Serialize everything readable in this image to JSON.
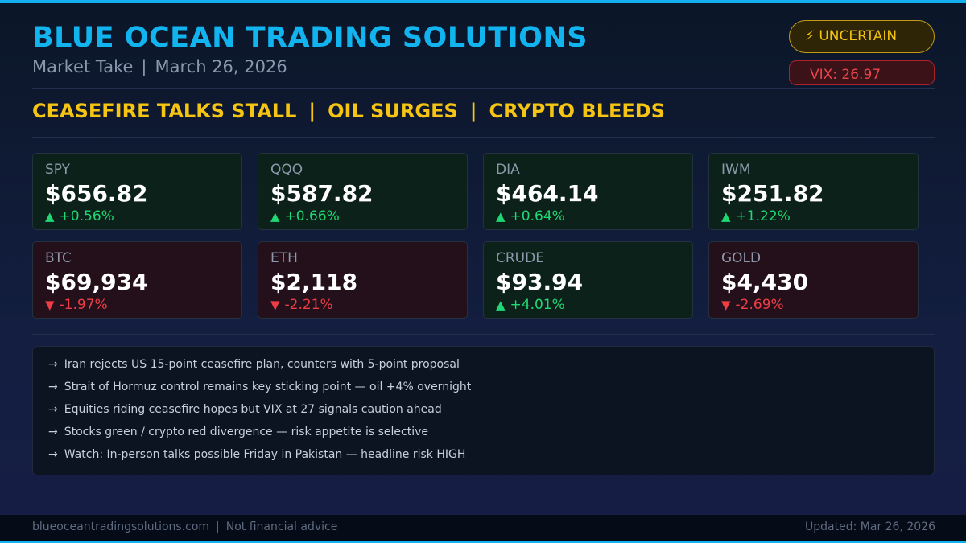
{
  "header": {
    "title": "BLUE OCEAN TRADING SOLUTIONS",
    "subtitle_left": "Market Take",
    "subtitle_separator": "|",
    "subtitle_date": "March 26, 2026"
  },
  "badges": {
    "uncertain_icon": "⚡",
    "uncertain_label": "UNCERTAIN",
    "vix_label": "VIX: 26.97"
  },
  "headline": {
    "parts": [
      "CEASEFIRE TALKS STALL",
      "OIL SURGES",
      "CRYPTO BLEEDS"
    ],
    "separator": "|"
  },
  "tickers": [
    {
      "symbol": "SPY",
      "price": "$656.82",
      "arrow": "▲",
      "change": "+0.56%",
      "direction": "up"
    },
    {
      "symbol": "QQQ",
      "price": "$587.82",
      "arrow": "▲",
      "change": "+0.66%",
      "direction": "up"
    },
    {
      "symbol": "DIA",
      "price": "$464.14",
      "arrow": "▲",
      "change": "+0.64%",
      "direction": "up"
    },
    {
      "symbol": "IWM",
      "price": "$251.82",
      "arrow": "▲",
      "change": "+1.22%",
      "direction": "up"
    },
    {
      "symbol": "BTC",
      "price": "$69,934",
      "arrow": "▼",
      "change": "-1.97%",
      "direction": "down"
    },
    {
      "symbol": "ETH",
      "price": "$2,118",
      "arrow": "▼",
      "change": "-2.21%",
      "direction": "down"
    },
    {
      "symbol": "CRUDE",
      "price": "$93.94",
      "arrow": "▲",
      "change": "+4.01%",
      "direction": "up"
    },
    {
      "symbol": "GOLD",
      "price": "$4,430",
      "arrow": "▼",
      "change": "-2.69%",
      "direction": "down"
    }
  ],
  "notes": {
    "arrow": "→",
    "items": [
      "Iran rejects US 15-point ceasefire plan, counters with 5-point proposal",
      "Strait of Hormuz control remains key sticking point — oil +4% overnight",
      "Equities riding ceasefire hopes but VIX at 27 signals caution ahead",
      "Stocks green / crypto red divergence — risk appetite is selective",
      "Watch: In-person talks possible Friday in Pakistan — headline risk HIGH"
    ]
  },
  "footer": {
    "site": "blueoceantradingsolutions.com",
    "separator": "|",
    "disclaimer": "Not financial advice",
    "updated": "Updated: Mar 26, 2026"
  },
  "colors": {
    "accent_blue": "#12b4f0",
    "headline_yellow": "#f6c413",
    "up_green": "#1fd873",
    "down_red": "#ee3d47"
  }
}
